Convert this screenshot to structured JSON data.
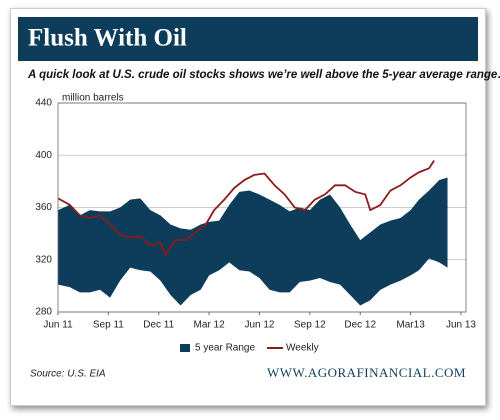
{
  "chart_data": {
    "type": "range-line",
    "title": "Flush With Oil",
    "subtitle": "A quick look at U.S. crude oil stocks shows we’re well above the 5-year average range…",
    "y_label": "million barrels",
    "source": "Source: U.S. EIA",
    "footer": "WWW.AGORAFINANCIAL.COM",
    "xlim": [
      0,
      24.3
    ],
    "xticks": [
      {
        "value": 0,
        "label": "Jun 11"
      },
      {
        "value": 3,
        "label": "Sep 11"
      },
      {
        "value": 6,
        "label": "Dec 11"
      },
      {
        "value": 9,
        "label": "Mar 12"
      },
      {
        "value": 12,
        "label": "Jun 12"
      },
      {
        "value": 15,
        "label": "Sep 12"
      },
      {
        "value": 18,
        "label": "Dec 12"
      },
      {
        "value": 21,
        "label": "Mar13"
      },
      {
        "value": 24,
        "label": "Jun 13"
      }
    ],
    "ylim": [
      280,
      440
    ],
    "yticks": [
      280,
      320,
      360,
      400,
      440
    ],
    "grid": true,
    "legend": "bottom",
    "series": [
      {
        "name": "5 year Range",
        "color": "#0e3d5c",
        "x": [
          0,
          0.7,
          1.3,
          1.9,
          2.5,
          3.1,
          3.7,
          4.3,
          4.9,
          5.5,
          6.1,
          6.7,
          7.3,
          7.9,
          8.5,
          9.0,
          9.6,
          10.2,
          10.8,
          11.4,
          12.0,
          12.6,
          13.2,
          13.8,
          14.4,
          15.0,
          15.6,
          16.2,
          16.8,
          17.4,
          18.0,
          18.6,
          19.2,
          19.8,
          20.4,
          21.0,
          21.5,
          22.1,
          22.7,
          23.2
        ],
        "high": [
          358,
          362,
          354,
          358,
          357,
          357,
          360,
          366,
          367,
          358,
          354,
          347,
          344,
          343,
          347,
          349,
          350,
          362,
          372,
          373,
          370,
          366,
          362,
          357,
          360,
          358,
          366,
          370,
          360,
          347,
          335,
          341,
          347,
          350,
          352,
          358,
          366,
          373,
          381,
          383
        ],
        "low": [
          301,
          299,
          295,
          295,
          297,
          291,
          304,
          314,
          312,
          311,
          304,
          293,
          285,
          293,
          297,
          308,
          312,
          318,
          312,
          311,
          306,
          297,
          295,
          295,
          303,
          304,
          306,
          303,
          301,
          293,
          285,
          289,
          297,
          301,
          304,
          308,
          312,
          321,
          318,
          314
        ]
      },
      {
        "name": "Weekly",
        "color": "#8b1a1a",
        "x": [
          0,
          0.7,
          1.3,
          1.9,
          2.5,
          3.1,
          3.7,
          4.3,
          4.9,
          5.5,
          6.1,
          6.4,
          7.0,
          7.6,
          8.2,
          8.8,
          9.3,
          9.9,
          10.5,
          11.1,
          11.7,
          12.3,
          12.9,
          13.5,
          14.1,
          14.7,
          15.3,
          15.9,
          16.5,
          17.1,
          17.7,
          18.3,
          18.6,
          19.2,
          19.8,
          20.4,
          21.0,
          21.5,
          22.1,
          22.4
        ],
        "values": [
          367,
          362,
          354,
          352,
          354,
          347,
          339,
          337,
          338,
          331,
          333,
          324,
          335,
          335,
          341,
          347,
          358,
          366,
          375,
          381,
          385,
          386,
          377,
          370,
          360,
          358,
          366,
          370,
          377,
          377,
          372,
          370,
          358,
          362,
          373,
          377,
          383,
          387,
          390,
          396
        ]
      }
    ]
  }
}
